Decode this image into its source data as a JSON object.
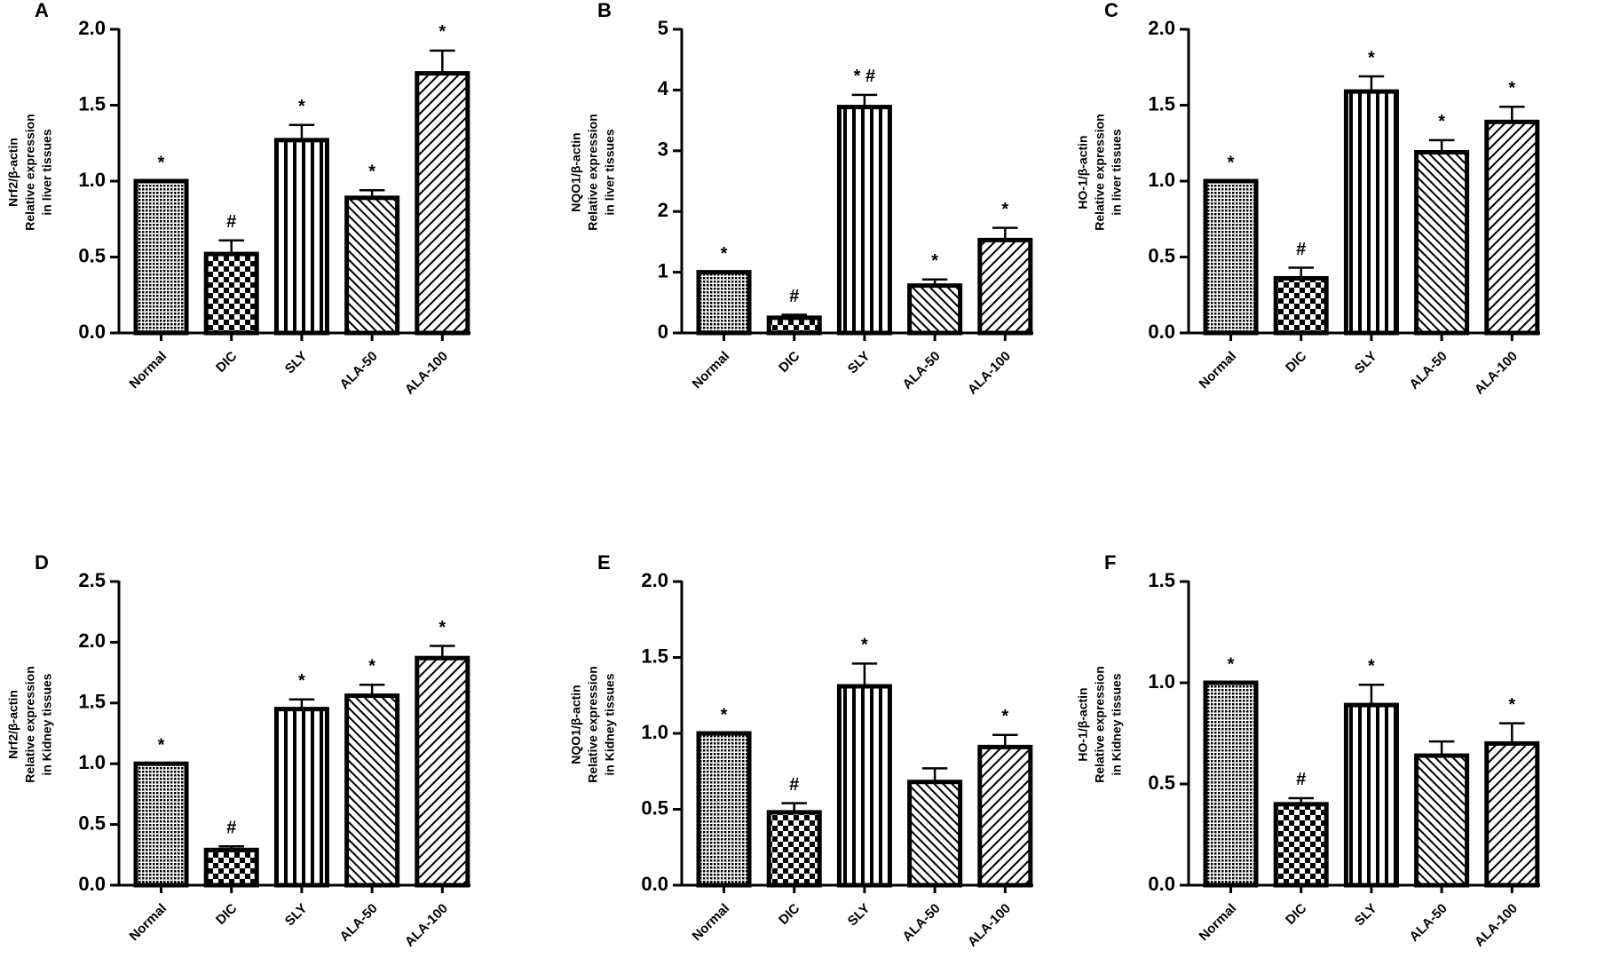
{
  "chart_data": [
    {
      "type": "bar",
      "panel": "A",
      "ylabel": [
        "Nrf2/β-actin",
        "Relative expression",
        "in liver tissues"
      ],
      "categories": [
        "Normal",
        "DIC",
        "SLY",
        "ALA-50",
        "ALA-100"
      ],
      "values": [
        1.0,
        0.52,
        1.27,
        0.89,
        1.71
      ],
      "errors": [
        0,
        0.09,
        0.1,
        0.05,
        0.15
      ],
      "annotations": [
        "*",
        "#",
        "*",
        "*",
        "*"
      ],
      "patterns": [
        "dots",
        "checker",
        "vertical",
        "back-diagonal",
        "diagonal"
      ],
      "ylim": [
        0,
        2
      ],
      "yticks": [
        {
          "value": 0,
          "label": "0.0"
        },
        0.5,
        {
          "value": 1,
          "label": "1.0"
        },
        1.5,
        {
          "value": 2,
          "label": "2.0"
        }
      ]
    },
    {
      "type": "bar",
      "panel": "B",
      "ylabel": [
        "NQO1/β-actin",
        "Relative expression",
        "in liver tissues"
      ],
      "categories": [
        "Normal",
        "DIC",
        "SLY",
        "ALA-50",
        "ALA-100"
      ],
      "values": [
        1.0,
        0.25,
        3.72,
        0.78,
        1.53
      ],
      "errors": [
        0,
        0.05,
        0.2,
        0.1,
        0.2
      ],
      "annotations": [
        "*",
        "#",
        "* #",
        "*",
        "*"
      ],
      "patterns": [
        "dots",
        "checker",
        "vertical",
        "back-diagonal",
        "diagonal"
      ],
      "ylim": [
        0,
        5
      ],
      "yticks": [
        0,
        1,
        2,
        3,
        4,
        5
      ]
    },
    {
      "type": "bar",
      "panel": "C",
      "ylabel": [
        "HO-1/β-actin",
        "Relative expression",
        "in liver tissues"
      ],
      "categories": [
        "Normal",
        "DIC",
        "SLY",
        "ALA-50",
        "ALA-100"
      ],
      "values": [
        1.0,
        0.36,
        1.59,
        1.19,
        1.39
      ],
      "errors": [
        0,
        0.07,
        0.1,
        0.08,
        0.1
      ],
      "annotations": [
        "*",
        "#",
        "*",
        "*",
        "*"
      ],
      "patterns": [
        "dots",
        "checker",
        "vertical",
        "back-diagonal",
        "diagonal"
      ],
      "ylim": [
        0,
        2
      ],
      "yticks": [
        {
          "value": 0,
          "label": "0.0"
        },
        0.5,
        {
          "value": 1,
          "label": "1.0"
        },
        1.5,
        {
          "value": 2,
          "label": "2.0"
        }
      ]
    },
    {
      "type": "bar",
      "panel": "D",
      "ylabel": [
        "Nrf2/β-actin",
        "Relative expression",
        "in Kidney tissues"
      ],
      "categories": [
        "Normal",
        "DIC",
        "SLY",
        "ALA-50",
        "ALA-100"
      ],
      "values": [
        1.0,
        0.29,
        1.45,
        1.56,
        1.87
      ],
      "errors": [
        0,
        0.03,
        0.08,
        0.09,
        0.1
      ],
      "annotations": [
        "*",
        "#",
        "*",
        "*",
        "*"
      ],
      "patterns": [
        "dots",
        "checker",
        "vertical",
        "back-diagonal",
        "diagonal"
      ],
      "ylim": [
        0,
        2.5
      ],
      "yticks": [
        {
          "value": 0,
          "label": "0.0"
        },
        0.5,
        {
          "value": 1,
          "label": "1.0"
        },
        1.5,
        {
          "value": 2,
          "label": "2.0"
        },
        2.5
      ]
    },
    {
      "type": "bar",
      "panel": "E",
      "ylabel": [
        "NQO1/β-actin",
        "Relative expression",
        "in Kidney tissues"
      ],
      "categories": [
        "Normal",
        "DIC",
        "SLY",
        "ALA-50",
        "ALA-100"
      ],
      "values": [
        1.0,
        0.48,
        1.31,
        0.68,
        0.91
      ],
      "errors": [
        0,
        0.06,
        0.15,
        0.09,
        0.08
      ],
      "annotations": [
        "*",
        "#",
        "*",
        null,
        "*"
      ],
      "patterns": [
        "dots",
        "checker",
        "vertical",
        "back-diagonal",
        "diagonal"
      ],
      "ylim": [
        0,
        2
      ],
      "yticks": [
        {
          "value": 0,
          "label": "0.0"
        },
        0.5,
        {
          "value": 1,
          "label": "1.0"
        },
        1.5,
        {
          "value": 2,
          "label": "2.0"
        }
      ]
    },
    {
      "type": "bar",
      "panel": "F",
      "ylabel": [
        "HO-1/β-actin",
        "Relative expression",
        "in Kidney tissues"
      ],
      "categories": [
        "Normal",
        "DIC",
        "SLY",
        "ALA-50",
        "ALA-100"
      ],
      "values": [
        1.0,
        0.4,
        0.89,
        0.64,
        0.7
      ],
      "errors": [
        0,
        0.03,
        0.1,
        0.07,
        0.1
      ],
      "annotations": [
        "*",
        "#",
        "*",
        null,
        "*"
      ],
      "patterns": [
        "dots",
        "checker",
        "vertical",
        "back-diagonal",
        "diagonal"
      ],
      "ylim": [
        0,
        1.5
      ],
      "yticks": [
        {
          "value": 0,
          "label": "0.0"
        },
        0.5,
        {
          "value": 1,
          "label": "1.0"
        },
        1.5
      ]
    }
  ]
}
